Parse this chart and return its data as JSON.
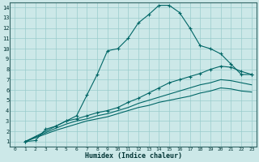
{
  "xlabel": "Humidex (Indice chaleur)",
  "bg_color": "#cce8e8",
  "grid_color": "#99cccc",
  "line_color": "#006666",
  "xlim": [
    -0.5,
    23.5
  ],
  "ylim": [
    0.5,
    14.5
  ],
  "xticks": [
    0,
    1,
    2,
    3,
    4,
    5,
    6,
    7,
    8,
    9,
    10,
    11,
    12,
    13,
    14,
    15,
    16,
    17,
    18,
    19,
    20,
    21,
    22,
    23
  ],
  "yticks": [
    1,
    2,
    3,
    4,
    5,
    6,
    7,
    8,
    9,
    10,
    11,
    12,
    13,
    14
  ],
  "line1_x": [
    1,
    2,
    3,
    4,
    5,
    6,
    7,
    8,
    9,
    10,
    11,
    12,
    13,
    14,
    15,
    16,
    17,
    18,
    19,
    20,
    21,
    22,
    23
  ],
  "line1_y": [
    1.0,
    1.1,
    2.2,
    2.5,
    3.0,
    3.5,
    5.5,
    7.5,
    9.8,
    10.0,
    11.0,
    12.5,
    13.3,
    14.2,
    14.2,
    13.5,
    12.0,
    10.3,
    10.0,
    9.5,
    8.5,
    7.5,
    7.5
  ],
  "line2_x": [
    1,
    4,
    5,
    6,
    7,
    8,
    9,
    10,
    11,
    12,
    13,
    14,
    15,
    16,
    17,
    18,
    19,
    20,
    21,
    22,
    23
  ],
  "line2_y": [
    1.0,
    2.5,
    3.0,
    3.2,
    3.5,
    3.8,
    4.0,
    4.3,
    4.8,
    5.2,
    5.7,
    6.2,
    6.7,
    7.0,
    7.3,
    7.6,
    8.0,
    8.3,
    8.2,
    7.8,
    7.5
  ],
  "line3_x": [
    1,
    4,
    5,
    6,
    7,
    8,
    9,
    10,
    11,
    12,
    13,
    14,
    15,
    16,
    17,
    18,
    19,
    20,
    21,
    22,
    23
  ],
  "line3_y": [
    1.0,
    2.3,
    2.7,
    3.0,
    3.2,
    3.5,
    3.7,
    4.0,
    4.3,
    4.7,
    5.0,
    5.3,
    5.6,
    5.9,
    6.2,
    6.5,
    6.7,
    7.0,
    6.9,
    6.7,
    6.5
  ],
  "line4_x": [
    1,
    4,
    5,
    6,
    7,
    8,
    9,
    10,
    11,
    12,
    13,
    14,
    15,
    16,
    17,
    18,
    19,
    20,
    21,
    22,
    23
  ],
  "line4_y": [
    1.0,
    2.1,
    2.4,
    2.7,
    3.0,
    3.2,
    3.4,
    3.7,
    4.0,
    4.3,
    4.5,
    4.8,
    5.0,
    5.2,
    5.4,
    5.7,
    5.9,
    6.2,
    6.1,
    5.9,
    5.8
  ]
}
